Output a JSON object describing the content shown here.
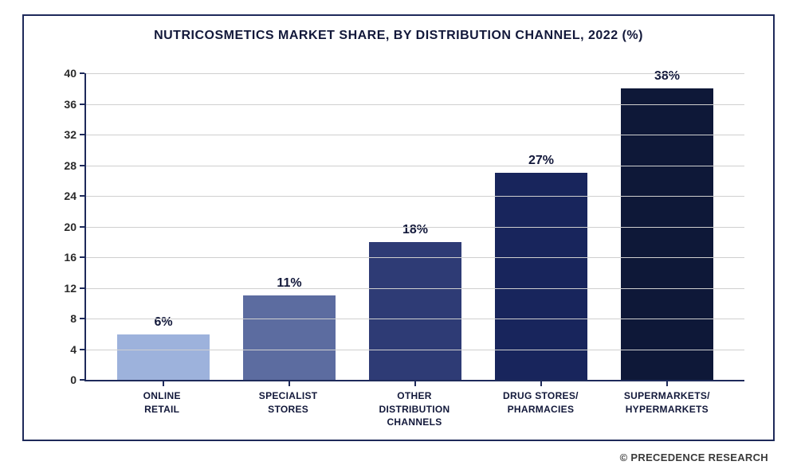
{
  "chart": {
    "type": "bar",
    "title": "NUTRICOSMETICS MARKET SHARE, BY DISTRIBUTION CHANNEL, 2022 (%)",
    "title_fontsize": 17,
    "categories": [
      "ONLINE RETAIL",
      "SPECIALIST STORES",
      "OTHER DISTRIBUTION CHANNELS",
      "DRUG STORES/ PHARMACIES",
      "SUPERMARKETS/ HYPERMARKETS"
    ],
    "values": [
      6,
      11,
      18,
      27,
      38
    ],
    "value_labels": [
      "6%",
      "11%",
      "18%",
      "27%",
      "38%"
    ],
    "bar_colors": [
      "#9db2dc",
      "#5c6ca0",
      "#2e3b75",
      "#18255c",
      "#0e1838"
    ],
    "ylim": [
      0,
      40
    ],
    "yticks": [
      0,
      4,
      8,
      12,
      16,
      20,
      24,
      28,
      32,
      36,
      40
    ],
    "grid_color": "#cfcfcf",
    "axis_color": "#1e2a5a",
    "border_color": "#1e2a5a",
    "background_color": "#ffffff",
    "bar_width": 0.74,
    "label_fontsize": 16,
    "tick_fontsize": 14,
    "cat_fontsize": 12
  },
  "credit": "© PRECEDENCE RESEARCH"
}
